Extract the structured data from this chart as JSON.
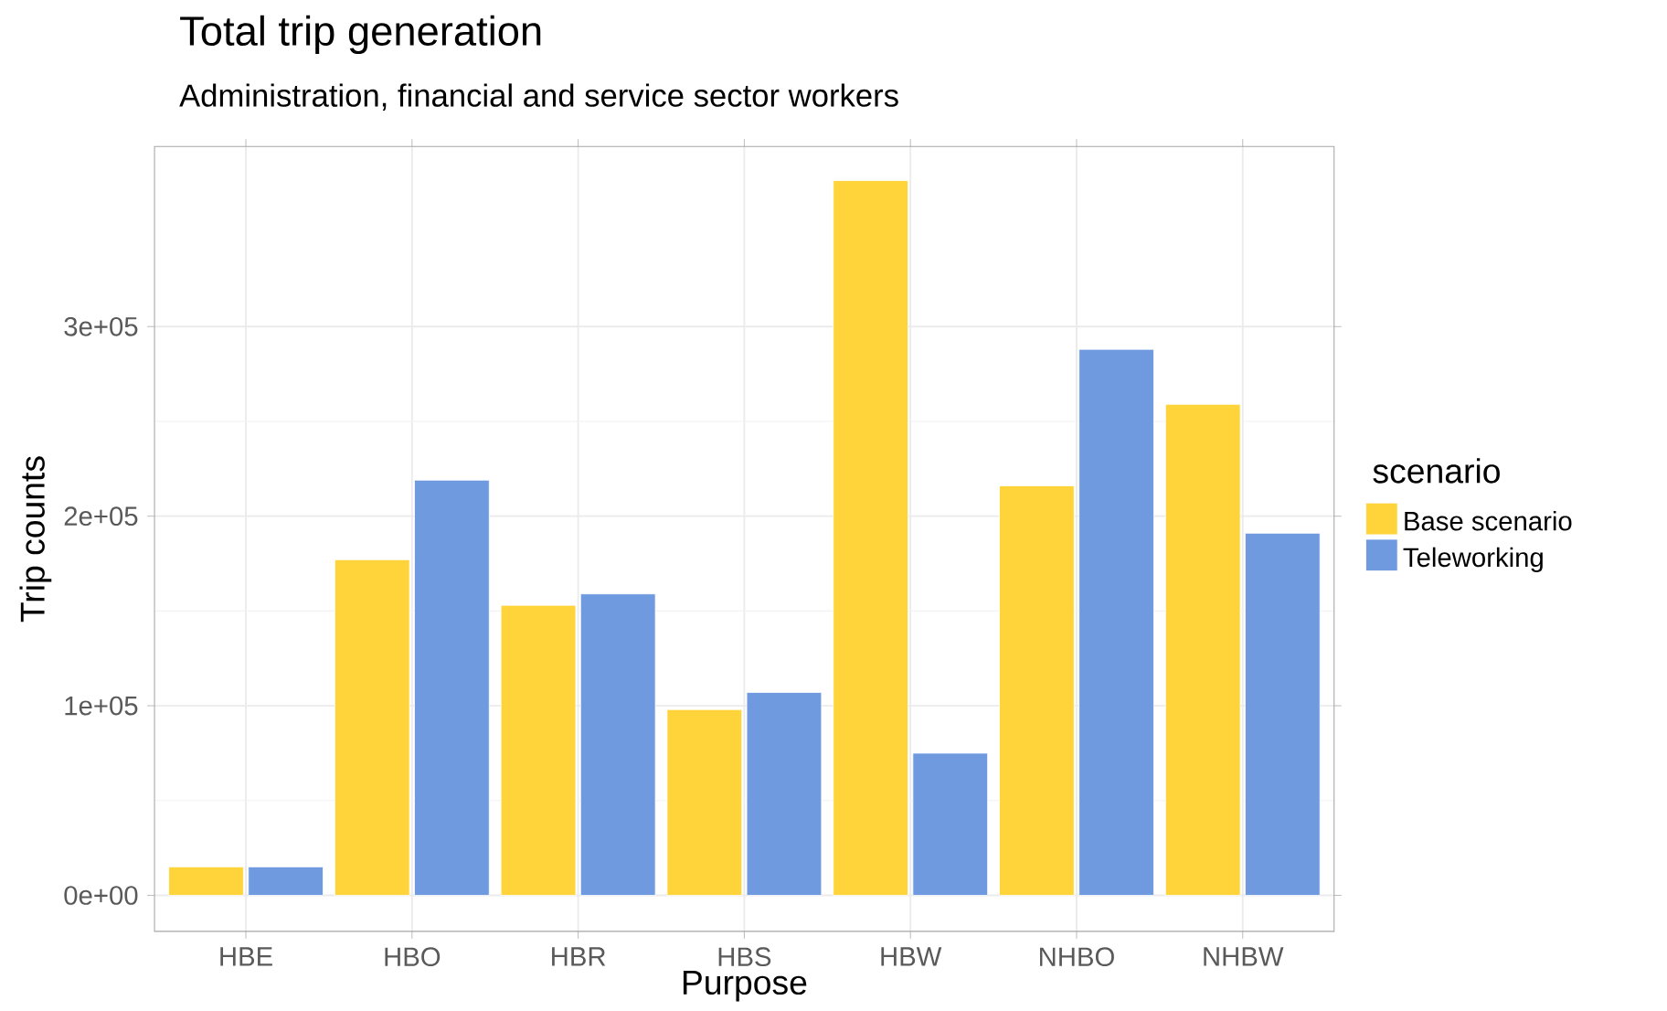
{
  "chart_data": {
    "type": "bar",
    "title": "Total trip generation",
    "subtitle": "Administration, financial and service sector workers",
    "xlabel": "Purpose",
    "ylabel": "Trip counts",
    "legend_title": "scenario",
    "categories": [
      "HBE",
      "HBO",
      "HBR",
      "HBS",
      "HBW",
      "NHBO",
      "NHBW"
    ],
    "series": [
      {
        "name": "Base scenario",
        "color": "#ffd43b",
        "values": [
          15000,
          177000,
          153000,
          98000,
          377000,
          216000,
          259000
        ]
      },
      {
        "name": "Teleworking",
        "color": "#6f9ae0",
        "values": [
          15000,
          219000,
          159000,
          107000,
          75000,
          288000,
          191000
        ]
      }
    ],
    "ylim": [
      -19000,
      395000
    ],
    "yticks": [
      {
        "value": 0,
        "label": "0e+00"
      },
      {
        "value": 100000,
        "label": "1e+05"
      },
      {
        "value": 200000,
        "label": "2e+05"
      },
      {
        "value": 300000,
        "label": "3e+05"
      }
    ],
    "grid": true,
    "legend": "right"
  }
}
